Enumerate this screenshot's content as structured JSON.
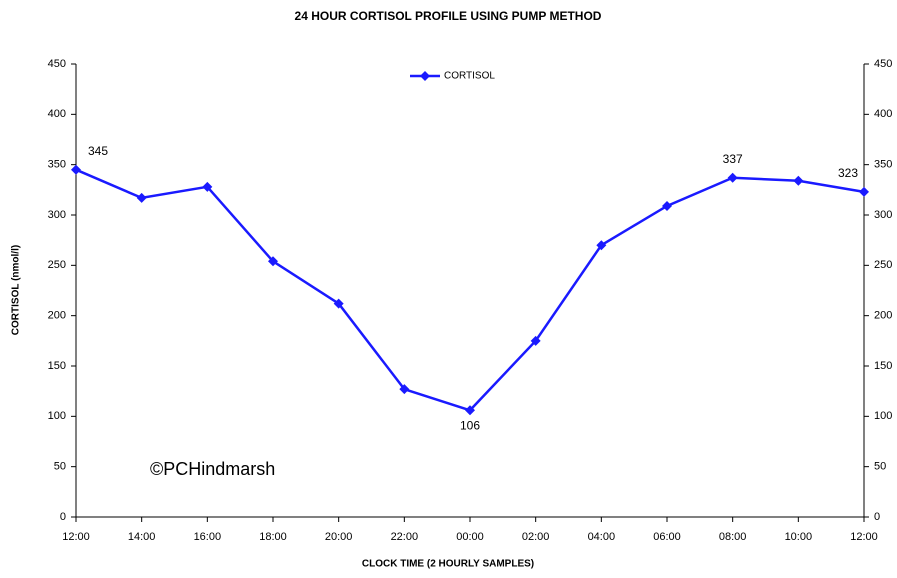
{
  "chart_data": {
    "type": "line",
    "title": "24 HOUR CORTISOL PROFILE USING PUMP METHOD",
    "x_label": "CLOCK TIME (2 HOURLY SAMPLES)",
    "y_label": "CORTISOL (nmol/l)",
    "annotation": "©PCHindmarsh",
    "categories": [
      "12:00",
      "14:00",
      "16:00",
      "18:00",
      "20:00",
      "22:00",
      "00:00",
      "02:00",
      "04:00",
      "06:00",
      "08:00",
      "10:00",
      "12:00"
    ],
    "series": [
      {
        "name": "CORTISOL",
        "color": "#1a1aff",
        "values": [
          345,
          317,
          328,
          254,
          212,
          127,
          106,
          175,
          270,
          309,
          337,
          334,
          323
        ],
        "value_labels": [
          "345",
          null,
          null,
          null,
          null,
          null,
          "106",
          null,
          null,
          null,
          "337",
          null,
          "323"
        ]
      }
    ],
    "ylim": [
      0,
      450
    ],
    "yticks": [
      0,
      50,
      100,
      150,
      200,
      250,
      300,
      350,
      400,
      450
    ],
    "y2lim": [
      0,
      450
    ],
    "y2ticks": [
      0,
      50,
      100,
      150,
      200,
      250,
      300,
      350,
      400,
      450
    ],
    "legend": "top-center",
    "grid": false
  }
}
